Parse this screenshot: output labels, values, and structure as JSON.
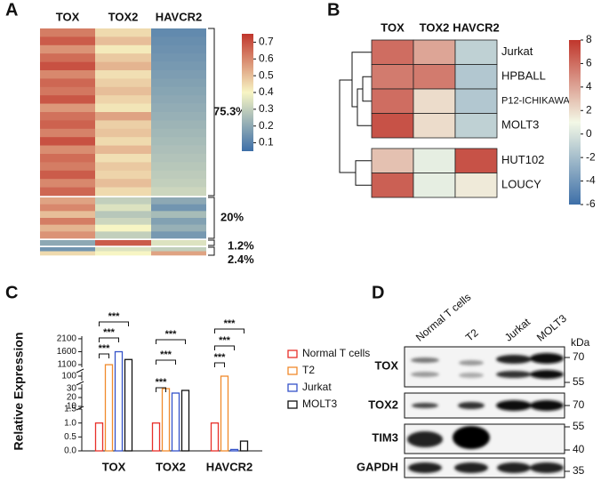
{
  "panel_labels": [
    "A",
    "B",
    "C",
    "D"
  ],
  "chart_data": [
    {
      "type": "heatmap",
      "columns": [
        "TOX",
        "TOX2",
        "HAVCR2"
      ],
      "row_groups": [
        {
          "label": "75.3%",
          "rows": [
            [
              0.62,
              0.45,
              0.12
            ],
            [
              0.68,
              0.5,
              0.13
            ],
            [
              0.58,
              0.42,
              0.14
            ],
            [
              0.65,
              0.48,
              0.15
            ],
            [
              0.7,
              0.52,
              0.16
            ],
            [
              0.6,
              0.44,
              0.17
            ],
            [
              0.66,
              0.47,
              0.18
            ],
            [
              0.63,
              0.5,
              0.19
            ],
            [
              0.69,
              0.46,
              0.2
            ],
            [
              0.57,
              0.43,
              0.21
            ],
            [
              0.64,
              0.55,
              0.22
            ],
            [
              0.67,
              0.47,
              0.23
            ],
            [
              0.61,
              0.49,
              0.24
            ],
            [
              0.7,
              0.45,
              0.25
            ],
            [
              0.59,
              0.51,
              0.26
            ],
            [
              0.65,
              0.44,
              0.27
            ],
            [
              0.62,
              0.48,
              0.28
            ],
            [
              0.68,
              0.46,
              0.29
            ],
            [
              0.6,
              0.5,
              0.3
            ],
            [
              0.66,
              0.45,
              0.32
            ]
          ]
        },
        {
          "label": "20%",
          "rows": [
            [
              0.55,
              0.3,
              0.2
            ],
            [
              0.6,
              0.35,
              0.15
            ],
            [
              0.5,
              0.28,
              0.25
            ],
            [
              0.62,
              0.32,
              0.18
            ],
            [
              0.52,
              0.4,
              0.22
            ],
            [
              0.58,
              0.3,
              0.16
            ]
          ]
        },
        {
          "label": "1.2%",
          "rows": [
            [
              0.2,
              0.68,
              0.35
            ]
          ]
        },
        {
          "label": "2.4%",
          "rows": [
            [
              0.15,
              0.35,
              0.3
            ],
            [
              0.45,
              0.4,
              0.55
            ]
          ]
        }
      ],
      "zlim": [
        0.05,
        0.75
      ],
      "zticks": [
        0.1,
        0.2,
        0.3,
        0.4,
        0.5,
        0.6,
        0.7
      ],
      "colorscale": [
        "#3d6fa8",
        "#f7f5c4",
        "#c0362c"
      ]
    },
    {
      "type": "heatmap",
      "columns": [
        "TOX",
        "TOX2",
        "HAVCR2"
      ],
      "rows": [
        "Jurkat",
        "HPBALL",
        "P12-ICHIKAWA",
        "MOLT3",
        "HUT102",
        "LOUCY"
      ],
      "row_label_colors": [
        "#d9382a",
        "#111111",
        "#111111",
        "#d9382a",
        "#111111",
        "#111111"
      ],
      "values": [
        [
          6,
          4,
          -1
        ],
        [
          5.5,
          5.5,
          -1.5
        ],
        [
          6,
          2,
          -1.5
        ],
        [
          7,
          2,
          -1
        ],
        [
          3,
          0.5,
          7
        ],
        [
          6.5,
          0.5,
          1.5
        ]
      ],
      "zlim": [
        -6,
        8
      ],
      "zticks": [
        -6,
        -4,
        -2,
        0,
        2,
        4,
        6,
        8
      ],
      "colorscale": [
        "#3d6fa8",
        "#f3f8e6",
        "#c0362c"
      ]
    },
    {
      "type": "bar",
      "y_label": "Relative Expression",
      "categories": [
        "TOX",
        "TOX2",
        "HAVCR2"
      ],
      "series": [
        {
          "name": "Normal T cells",
          "color": "#e8302a",
          "values": [
            1,
            1,
            1
          ]
        },
        {
          "name": "T2",
          "color": "#f08a2c",
          "values": [
            1100,
            30,
            100
          ]
        },
        {
          "name": "Jurkat",
          "color": "#3553c9",
          "values": [
            1600,
            25,
            0.05
          ]
        },
        {
          "name": "MOLT3",
          "color": "#111111",
          "values": [
            1300,
            28,
            0.35
          ]
        }
      ],
      "y_segments": [
        {
          "ylim": [
            0,
            1.5
          ],
          "yticks": [
            {
              "value": 0,
              "label": "0.0"
            },
            0.5,
            {
              "value": 1,
              "label": "1.0"
            },
            1.5
          ]
        },
        {
          "ylim": [
            10,
            35
          ],
          "yticks": [
            10,
            20,
            30
          ]
        },
        {
          "ylim": [
            90,
            110
          ],
          "yticks": [
            100
          ]
        },
        {
          "ylim": [
            1000,
            2200
          ],
          "yticks": [
            1100,
            1600,
            2100
          ]
        }
      ],
      "significance": [
        [
          "***",
          "***",
          "***"
        ],
        [
          "***",
          "***",
          "***"
        ],
        [
          "***",
          "***",
          "***"
        ]
      ]
    }
  ],
  "blot": {
    "lanes": [
      "Normal T cells",
      "T2",
      "Jurkat",
      "MOLT3"
    ],
    "rows": [
      "TOX",
      "TOX2",
      "TIM3",
      "GAPDH"
    ],
    "unit": "kDa",
    "markers": [
      "70",
      "55",
      "70",
      "55",
      "40",
      "35"
    ]
  }
}
